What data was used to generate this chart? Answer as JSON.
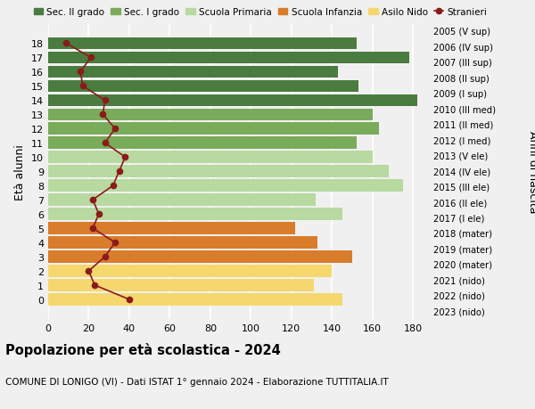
{
  "ages": [
    18,
    17,
    16,
    15,
    14,
    13,
    12,
    11,
    10,
    9,
    8,
    7,
    6,
    5,
    4,
    3,
    2,
    1,
    0
  ],
  "years": [
    "2005 (V sup)",
    "2006 (IV sup)",
    "2007 (III sup)",
    "2008 (II sup)",
    "2009 (I sup)",
    "2010 (III med)",
    "2011 (II med)",
    "2012 (I med)",
    "2013 (V ele)",
    "2014 (IV ele)",
    "2015 (III ele)",
    "2016 (II ele)",
    "2017 (I ele)",
    "2018 (mater)",
    "2019 (mater)",
    "2020 (mater)",
    "2021 (nido)",
    "2022 (nido)",
    "2023 (nido)"
  ],
  "bar_values": [
    152,
    178,
    143,
    153,
    182,
    160,
    163,
    152,
    160,
    168,
    175,
    132,
    145,
    122,
    133,
    150,
    140,
    131,
    145
  ],
  "stranieri": [
    9,
    21,
    16,
    17,
    28,
    27,
    33,
    28,
    38,
    35,
    32,
    22,
    25,
    22,
    33,
    28,
    20,
    23,
    40
  ],
  "categories": {
    "sec2": [
      14,
      15,
      16,
      17,
      18
    ],
    "sec1": [
      11,
      12,
      13
    ],
    "primaria": [
      6,
      7,
      8,
      9,
      10
    ],
    "infanzia": [
      3,
      4,
      5
    ],
    "nido": [
      0,
      1,
      2
    ]
  },
  "colors": {
    "sec2": "#4a7c3f",
    "sec1": "#7aab5a",
    "primaria": "#b8d9a0",
    "infanzia": "#d97c2b",
    "nido": "#f5d76e"
  },
  "legend_labels": [
    "Sec. II grado",
    "Sec. I grado",
    "Scuola Primaria",
    "Scuola Infanzia",
    "Asilo Nido",
    "Stranieri"
  ],
  "ylabel": "Età alunni",
  "right_label": "Anni di nascita",
  "title": "Popolazione per età scolastica - 2024",
  "subtitle": "COMUNE DI LONIGO (VI) - Dati ISTAT 1° gennaio 2024 - Elaborazione TUTTITALIA.IT",
  "xlim": [
    0,
    190
  ],
  "xticks": [
    0,
    20,
    40,
    60,
    80,
    100,
    120,
    140,
    160,
    180
  ],
  "bg_color": "#f0f0f0",
  "stranieri_color": "#8b1a1a"
}
